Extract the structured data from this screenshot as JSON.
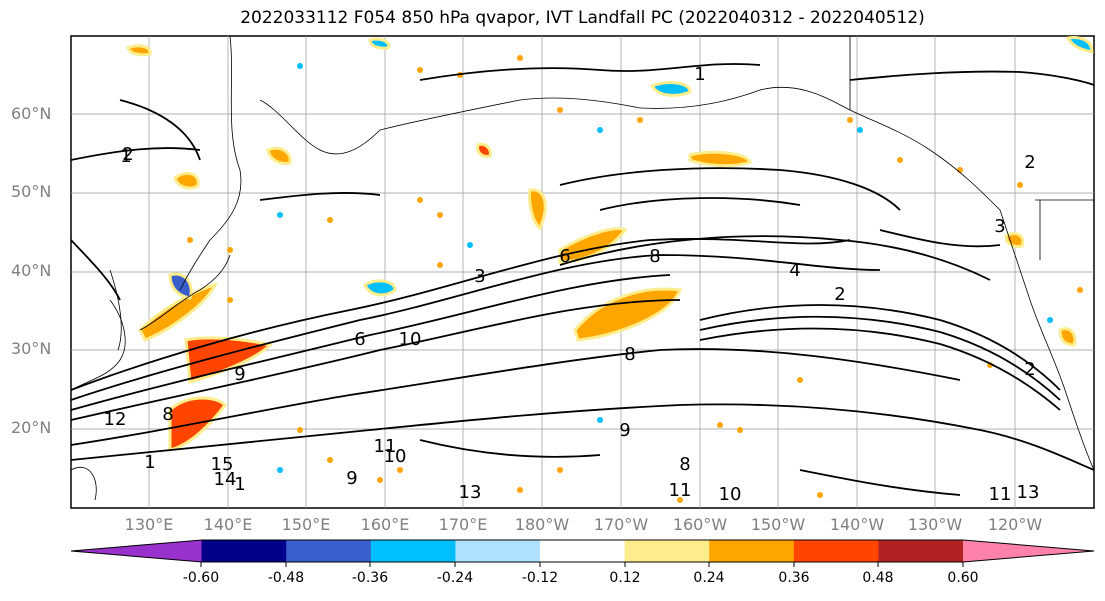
{
  "title": "2022033112 F054 850 hPa qvapor, IVT Landfall PC (2022040312 - 2022040512)",
  "lat_labels": [
    "60°N",
    "50°N",
    "40°N",
    "30°N",
    "20°N"
  ],
  "lon_labels": [
    "130°E",
    "140°E",
    "150°E",
    "160°E",
    "170°E",
    "180°W",
    "170°W",
    "160°W",
    "150°W",
    "140°W",
    "130°W",
    "120°W"
  ],
  "colorbar": {
    "colors": [
      "#9932cc",
      "#00008b",
      "#3a5fcd",
      "#00bfff",
      "#b0e2ff",
      "#ffffff",
      "#ffec8b",
      "#ffa500",
      "#ff4500",
      "#b22222",
      "#ff82ab"
    ],
    "tick_labels": [
      "-0.60",
      "-0.48",
      "-0.36",
      "-0.24",
      "-0.12",
      "0.12",
      "0.24",
      "0.36",
      "0.48",
      "0.60"
    ]
  },
  "contour_labels": [
    "1",
    "2",
    "3",
    "4",
    "6",
    "8",
    "9",
    "10",
    "11",
    "12",
    "13",
    "14",
    "15"
  ],
  "colors": {
    "grid": "#999999",
    "contour": "#000000",
    "coast": "#000000"
  }
}
